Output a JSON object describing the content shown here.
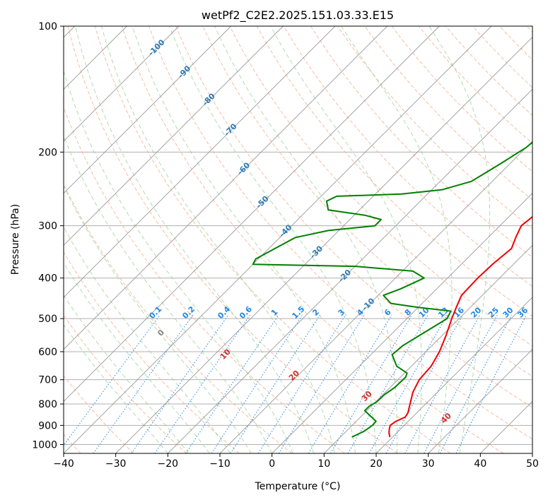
{
  "chart_data": {
    "type": "line",
    "title": "wetPf2_C2E2.2025.151.03.33.E15",
    "xlabel": "Temperature (°C)",
    "ylabel": "Pressure (hPa)",
    "xlim": [
      -40,
      50
    ],
    "ylim": [
      1050,
      100
    ],
    "y_scale": "log",
    "x_ticks": [
      -40,
      -30,
      -20,
      -10,
      0,
      10,
      20,
      30,
      40,
      50
    ],
    "y_ticks": [
      100,
      200,
      300,
      400,
      500,
      600,
      700,
      800,
      900,
      1000
    ],
    "grid": true,
    "colors": {
      "temperature": "#ee0000",
      "dewpoint": "#008000",
      "isotherm": "#999999",
      "dry_adiabat": "#f4a582",
      "moist_adiabat": "#8fcc8f",
      "mixing_ratio": "#1e88e5",
      "isotherm_label": "#2c7bb6",
      "adiabat_label": "#d32f2f",
      "zero_label": "#888888"
    },
    "series": [
      {
        "key": "temperature",
        "points": [
          [
            19.5,
            960
          ],
          [
            18.6,
            940
          ],
          [
            17.9,
            920
          ],
          [
            17.3,
            900
          ],
          [
            17.6,
            880
          ],
          [
            18.6,
            860
          ],
          [
            18.3,
            840
          ],
          [
            17.0,
            800
          ],
          [
            15.3,
            750
          ],
          [
            14.1,
            700
          ],
          [
            13.8,
            650
          ],
          [
            12.6,
            600
          ],
          [
            10.8,
            550
          ],
          [
            8.6,
            500
          ],
          [
            7.3,
            470
          ],
          [
            6.0,
            440
          ],
          [
            5.8,
            400
          ],
          [
            6.0,
            370
          ],
          [
            6.6,
            340
          ],
          [
            5.3,
            320
          ],
          [
            4.1,
            300
          ],
          [
            5.0,
            270
          ],
          [
            6.5,
            240
          ],
          [
            7.5,
            210
          ],
          [
            8.6,
            190
          ],
          [
            9.0,
            170
          ],
          [
            9.4,
            150
          ],
          [
            10.4,
            135
          ],
          [
            12.0,
            120
          ],
          [
            13.0,
            110
          ],
          [
            14.2,
            104
          ],
          [
            15.6,
            100
          ]
        ]
      },
      {
        "key": "dewpoint",
        "points": [
          [
            12.2,
            960
          ],
          [
            13.4,
            930
          ],
          [
            13.9,
            900
          ],
          [
            13.8,
            880
          ],
          [
            9.6,
            830
          ],
          [
            9.6,
            810
          ],
          [
            10.2,
            790
          ],
          [
            10.3,
            760
          ],
          [
            10.9,
            730
          ],
          [
            11.0,
            690
          ],
          [
            10.5,
            675
          ],
          [
            7.2,
            650
          ],
          [
            4.1,
            610
          ],
          [
            4.4,
            580
          ],
          [
            6.0,
            540
          ],
          [
            7.7,
            500
          ],
          [
            7.0,
            480
          ],
          [
            0.0,
            470
          ],
          [
            -6.0,
            460
          ],
          [
            -9.0,
            440
          ],
          [
            -7.0,
            425
          ],
          [
            -6.0,
            415
          ],
          [
            -4.5,
            400
          ],
          [
            -8.0,
            385
          ],
          [
            -20.0,
            375
          ],
          [
            -40.0,
            371
          ],
          [
            -40.5,
            360
          ],
          [
            -37.0,
            320
          ],
          [
            -32.0,
            308
          ],
          [
            -24.0,
            300
          ],
          [
            -24.0,
            290
          ],
          [
            -28.0,
            283
          ],
          [
            -36.0,
            275
          ],
          [
            -38.0,
            262
          ],
          [
            -37.0,
            255
          ],
          [
            -25.0,
            252
          ],
          [
            -18.0,
            246
          ],
          [
            -14.0,
            235
          ],
          [
            -12.0,
            215
          ],
          [
            -10.0,
            195
          ],
          [
            -9.0,
            170
          ],
          [
            -8.5,
            150
          ],
          [
            -8.3,
            140
          ],
          [
            -7.0,
            130
          ],
          [
            -4.0,
            118
          ],
          [
            -1.0,
            110
          ],
          [
            1.0,
            104
          ],
          [
            0.5,
            100
          ]
        ]
      }
    ],
    "mixing_ratio_labels": [
      "0.1",
      "0.2",
      "0.4",
      "0.6",
      "1",
      "1.5",
      "2",
      "3",
      "4",
      "6",
      "8",
      "10",
      "13",
      "16",
      "20",
      "25",
      "30",
      "36"
    ],
    "mixing_ratio_values": [
      0.1,
      0.2,
      0.4,
      0.6,
      1,
      1.5,
      2,
      3,
      4,
      6,
      8,
      10,
      13,
      16,
      20,
      25,
      30,
      36
    ],
    "isotherm_labels": [
      "-100",
      "-90",
      "-80",
      "-70",
      "-60",
      "-50",
      "-40",
      "-30",
      "-20",
      "-10"
    ],
    "isotherm_values": [
      -100,
      -90,
      -80,
      -70,
      -60,
      -50,
      -40,
      -30,
      -20,
      -10
    ],
    "adiabat_labels": [
      "0",
      "10",
      "20",
      "30",
      "40"
    ],
    "adiabat_values": [
      0,
      10,
      20,
      30,
      40
    ]
  }
}
